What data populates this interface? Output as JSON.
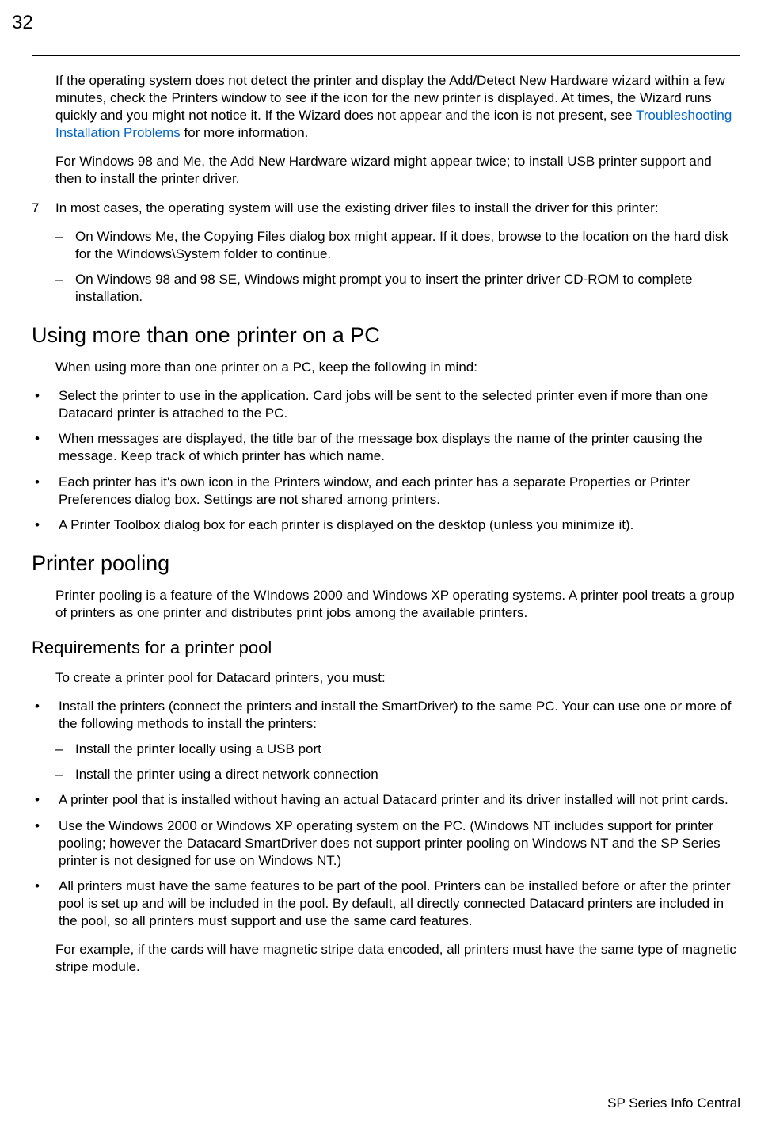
{
  "pageNumber": "32",
  "para1_a": "If the operating system does not detect the printer and display the Add/Detect New Hardware wizard within a few minutes, check the Printers window to see if the icon for the new printer is displayed. At times, the Wizard runs quickly and you might not notice it. If the Wizard does not appear and the icon is not present, see ",
  "para1_link": "Troubleshooting Installation Problems",
  "para1_b": " for more information.",
  "para2": "For Windows 98 and Me, the Add New Hardware wizard might appear twice; to install USB printer support and then to install the printer driver.",
  "step7_num": "7",
  "step7_text": "In most cases, the operating system will use the existing driver files to install the driver for this printer:",
  "step7_dash1": "On Windows Me, the Copying Files dialog box might appear. If it does, browse to the location on the hard disk for the Windows\\System folder to continue.",
  "step7_dash2": "On Windows 98 and 98 SE, Windows might prompt you to insert the printer driver CD-ROM to complete installation.",
  "section1_title": "Using more than one printer on a PC",
  "section1_intro": "When using more than one printer on a PC, keep the following in mind:",
  "section1_bullets": [
    "Select the printer to use in the application. Card jobs will be sent to the selected printer even if more than one Datacard printer is attached to the PC.",
    "When messages are displayed, the title bar of the message box displays the name of the printer causing the message. Keep track of which printer has which name.",
    "Each printer has it's own icon in the Printers window, and each printer has a separate Properties or Printer Preferences dialog box. Settings are not shared among printers.",
    "A Printer Toolbox dialog box for each printer is displayed on the desktop (unless you minimize it)."
  ],
  "section2_title": "Printer pooling",
  "section2_intro": "Printer pooling is a feature of the WIndows 2000 and Windows XP operating systems. A printer pool treats a group of printers as one printer and distributes print jobs among the available printers.",
  "subsection1_title": "Requirements for a printer pool",
  "subsection1_intro": "To create a printer pool for Datacard printers, you must:",
  "req_bullet1": "Install the printers (connect the printers and install the SmartDriver) to the same PC. Your can use one or more of the following methods to install the printers:",
  "req_dash1": "Install the printer locally using a USB port",
  "req_dash2": "Install the printer using a direct network connection",
  "req_bullet2": "A printer pool that is installed without having an actual Datacard printer and its driver installed will not print cards.",
  "req_bullet3": "Use the Windows 2000 or Windows XP operating system on the PC. (Windows NT includes support for printer pooling; however the Datacard SmartDriver does not support printer pooling on Windows NT and the SP Series printer is not designed for use on Windows NT.)",
  "req_bullet4": "All printers must have the same features to be part of the pool. Printers can be installed before or after the printer pool is set up and will be included in the pool. By default, all directly connected Datacard printers are included in the pool, so all printers must support and use the same card features.",
  "req_note": "For example, if the cards will have magnetic stripe data encoded, all printers must have the same type of magnetic stripe module.",
  "footer": "SP Series Info Central"
}
